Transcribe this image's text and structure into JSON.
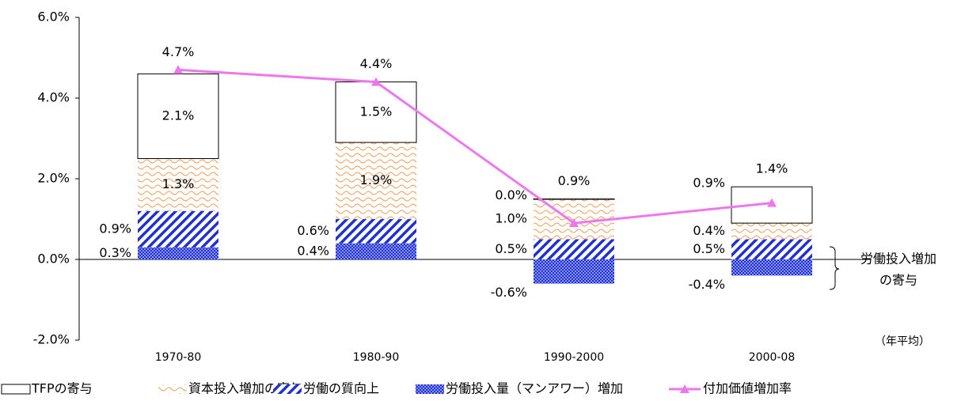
{
  "chart_data": {
    "type": "stacked-bar-line",
    "categories": [
      "1970-80",
      "1980-90",
      "1990-2000",
      "2000-08"
    ],
    "series": [
      {
        "name": "TFPの寄与",
        "color": "#000000",
        "values": [
          2.1,
          1.5,
          0.0,
          0.9
        ],
        "value_labels": [
          "2.1%",
          "1.5%",
          "0.0%",
          "0.9%"
        ]
      },
      {
        "name": "資本投入増加の寄与",
        "color": "#f0a060",
        "values": [
          1.3,
          1.9,
          1.0,
          0.4
        ],
        "value_labels": [
          "1.3%",
          "1.9%",
          "1.0%",
          "0.4%"
        ]
      },
      {
        "name": "労働の質向上",
        "color": "#1f2fd6",
        "values": [
          0.9,
          0.6,
          0.5,
          0.5
        ],
        "value_labels": [
          "0.9%",
          "0.6%",
          "0.5%",
          "0.5%"
        ]
      },
      {
        "name": "労働投入量（マンアワー）増加",
        "color": "#1f2fd6",
        "values": [
          0.3,
          0.4,
          -0.6,
          -0.4
        ],
        "value_labels": [
          "0.3%",
          "0.4%",
          "-0.6%",
          "-0.4%"
        ]
      },
      {
        "name": "付加価値増加率",
        "type": "line",
        "color": "#ee77ee",
        "values": [
          4.7,
          4.4,
          0.9,
          1.4
        ],
        "value_labels": [
          "4.7%",
          "4.4%",
          "0.9%",
          "1.4%"
        ]
      }
    ],
    "ylim": [
      -2,
      6
    ],
    "yticks": [
      {
        "value": -2,
        "label": "-2.0%"
      },
      {
        "value": 0,
        "label": "0.0%"
      },
      {
        "value": 2,
        "label": "2.0%"
      },
      {
        "value": 4,
        "label": "4.0%"
      },
      {
        "value": 6,
        "label": "6.0%"
      }
    ],
    "annotation": [
      "労働投入増加",
      "の寄与"
    ],
    "note": "（年平均）",
    "legend": "bottom"
  }
}
